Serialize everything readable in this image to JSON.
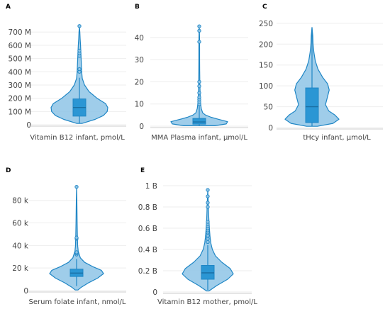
{
  "colors": {
    "fill": "#8ec4e6",
    "stroke": "#1f86c5",
    "box": "#2b96d4",
    "axis": "#cccccc"
  },
  "chart_data": [
    {
      "type": "violin",
      "panel": "A",
      "xlabel": "Vitamin B12 infant, pmol/L",
      "ylim": [
        0,
        760
      ],
      "yticks": [
        "0",
        "100 M",
        "200 M",
        "300 M",
        "400 M",
        "500 M",
        "600 M",
        "700 M"
      ],
      "ytick_values": [
        0,
        100,
        200,
        300,
        400,
        500,
        600,
        700
      ],
      "density": [
        [
          10,
          0.1
        ],
        [
          40,
          0.55
        ],
        [
          70,
          0.85
        ],
        [
          100,
          0.98
        ],
        [
          130,
          1.0
        ],
        [
          160,
          0.92
        ],
        [
          200,
          0.62
        ],
        [
          250,
          0.34
        ],
        [
          300,
          0.18
        ],
        [
          350,
          0.1
        ],
        [
          400,
          0.08
        ],
        [
          450,
          0.07
        ],
        [
          500,
          0.06
        ],
        [
          550,
          0.05
        ],
        [
          600,
          0.04
        ],
        [
          650,
          0.025
        ],
        [
          700,
          0.015
        ],
        [
          745,
          0.0
        ]
      ],
      "box": {
        "q1": 65,
        "median": 130,
        "q3": 195,
        "whisker_low": 10,
        "whisker_high": 355
      },
      "outliers": [
        400,
        420,
        520,
        540,
        560,
        745
      ]
    },
    {
      "type": "violin",
      "panel": "B",
      "xlabel": "MMA Plasma infant, µmol/L",
      "ylim": [
        0,
        46
      ],
      "yticks": [
        "0",
        "10",
        "20",
        "30",
        "40"
      ],
      "ytick_values": [
        0,
        10,
        20,
        30,
        40
      ],
      "density": [
        [
          0.2,
          0.55
        ],
        [
          1,
          0.95
        ],
        [
          2,
          1.0
        ],
        [
          3,
          0.7
        ],
        [
          4,
          0.42
        ],
        [
          5,
          0.22
        ],
        [
          6,
          0.12
        ],
        [
          8,
          0.07
        ],
        [
          10,
          0.05
        ],
        [
          12,
          0.04
        ],
        [
          15,
          0.03
        ],
        [
          20,
          0.02
        ],
        [
          25,
          0.015
        ],
        [
          30,
          0.012
        ],
        [
          35,
          0.012
        ],
        [
          40,
          0.01
        ],
        [
          45.5,
          0.0
        ]
      ],
      "box": {
        "q1": 0.9,
        "median": 1.9,
        "q3": 3.5,
        "whisker_low": 0.2,
        "whisker_high": 9
      },
      "outliers": [
        10,
        11,
        12,
        13,
        15,
        18,
        20,
        38,
        43,
        45
      ]
    },
    {
      "type": "violin",
      "panel": "C",
      "xlabel": "tHcy infant, µmol/L",
      "ylim": [
        0,
        248
      ],
      "yticks": [
        "0",
        "50",
        "100",
        "150",
        "200",
        "250"
      ],
      "ytick_values": [
        0,
        50,
        100,
        150,
        200,
        250
      ],
      "density": [
        [
          3,
          0.2
        ],
        [
          10,
          0.78
        ],
        [
          20,
          1.0
        ],
        [
          30,
          0.85
        ],
        [
          40,
          0.62
        ],
        [
          55,
          0.5
        ],
        [
          70,
          0.56
        ],
        [
          90,
          0.64
        ],
        [
          105,
          0.58
        ],
        [
          120,
          0.4
        ],
        [
          140,
          0.22
        ],
        [
          160,
          0.12
        ],
        [
          180,
          0.07
        ],
        [
          200,
          0.04
        ],
        [
          220,
          0.03
        ],
        [
          240,
          0.0
        ]
      ],
      "box": {
        "q1": 12,
        "median": 50,
        "q3": 95,
        "whisker_low": 3,
        "whisker_high": 238
      },
      "outliers": []
    },
    {
      "type": "violin",
      "panel": "D",
      "xlabel": "Serum folate infant, nmol/L",
      "ylim": [
        0,
        93
      ],
      "yticks": [
        "0",
        "20 k",
        "40 k",
        "60 k",
        "80 k"
      ],
      "ytick_values": [
        0,
        20,
        40,
        60,
        80
      ],
      "density": [
        [
          0.5,
          0.05
        ],
        [
          3,
          0.18
        ],
        [
          7,
          0.45
        ],
        [
          11,
          0.78
        ],
        [
          15,
          1.0
        ],
        [
          18,
          0.92
        ],
        [
          21,
          0.62
        ],
        [
          25,
          0.3
        ],
        [
          29,
          0.14
        ],
        [
          32,
          0.1
        ],
        [
          35,
          0.06
        ],
        [
          40,
          0.04
        ],
        [
          45,
          0.035
        ],
        [
          50,
          0.03
        ],
        [
          60,
          0.02
        ],
        [
          70,
          0.015
        ],
        [
          80,
          0.01
        ],
        [
          92,
          0.0
        ]
      ],
      "box": {
        "q1": 12.5,
        "median": 15.5,
        "q3": 19,
        "whisker_low": 4,
        "whisker_high": 28
      },
      "outliers": [
        32,
        33,
        34,
        46,
        47,
        92
      ]
    },
    {
      "type": "violin",
      "panel": "E",
      "xlabel": "Vitamin B12 mother, pmol/L",
      "ylim": [
        0,
        1.0
      ],
      "yticks": [
        "0",
        "0.2 B",
        "0.4 B",
        "0.6 B",
        "0.8 B",
        "1 B"
      ],
      "ytick_values": [
        0,
        0.2,
        0.4,
        0.6,
        0.8,
        1.0
      ],
      "density": [
        [
          0.01,
          0.05
        ],
        [
          0.06,
          0.35
        ],
        [
          0.12,
          0.78
        ],
        [
          0.17,
          1.0
        ],
        [
          0.22,
          0.88
        ],
        [
          0.28,
          0.55
        ],
        [
          0.34,
          0.3
        ],
        [
          0.4,
          0.18
        ],
        [
          0.46,
          0.12
        ],
        [
          0.52,
          0.09
        ],
        [
          0.58,
          0.07
        ],
        [
          0.65,
          0.05
        ],
        [
          0.72,
          0.035
        ],
        [
          0.8,
          0.025
        ],
        [
          0.88,
          0.015
        ],
        [
          0.96,
          0.0
        ]
      ],
      "box": {
        "q1": 0.12,
        "median": 0.18,
        "q3": 0.25,
        "whisker_low": 0.02,
        "whisker_high": 0.44
      },
      "outliers": [
        0.47,
        0.5,
        0.53,
        0.56,
        0.58,
        0.6,
        0.62,
        0.64,
        0.66,
        0.8,
        0.84,
        0.9,
        0.96
      ]
    }
  ]
}
